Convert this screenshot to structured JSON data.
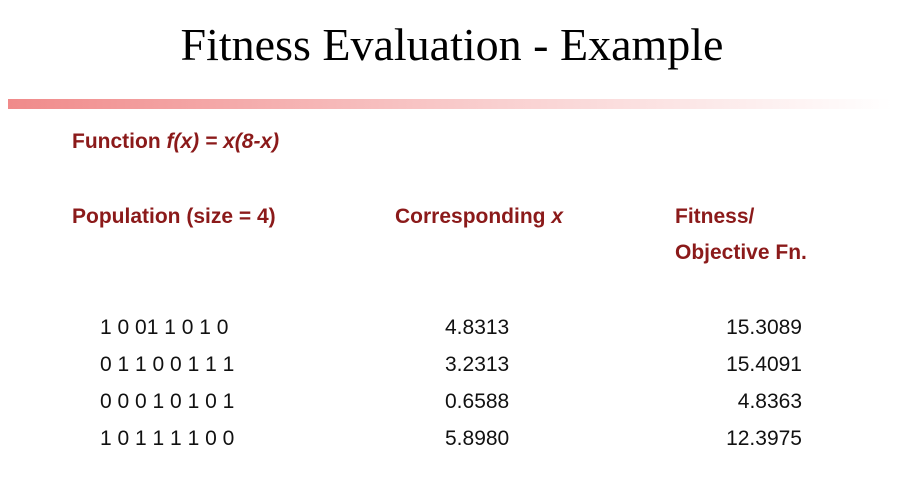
{
  "title": "Fitness Evaluation - Example",
  "function": {
    "label": "Function",
    "formula": "f(x) = x(8-x)"
  },
  "table": {
    "headers": [
      {
        "text": "Population (size = 4)"
      },
      {
        "text": "Corresponding",
        "var": "x"
      },
      {
        "lines": [
          "Fitness/",
          "Objective Fn."
        ]
      }
    ],
    "rows": [
      [
        "1 0 01 1 0 1 0",
        "4.8313",
        "15.3089"
      ],
      [
        "0 1 1 0 0 1 1 1",
        "3.2313",
        "15.4091"
      ],
      [
        "0 0 0 1 0 1 0 1",
        "0.6588",
        "4.8363"
      ],
      [
        "1 0 1 1 1 1 0 0",
        "5.8980",
        "12.3975"
      ]
    ]
  }
}
